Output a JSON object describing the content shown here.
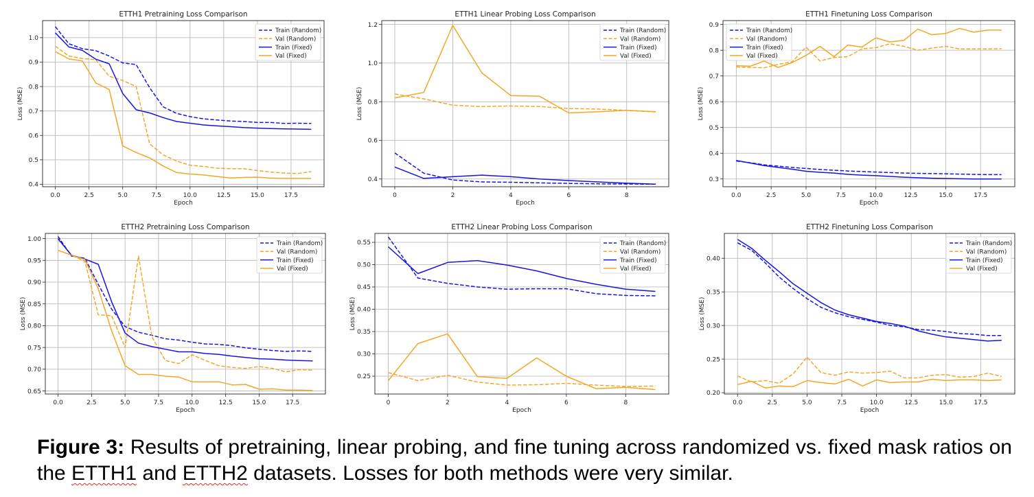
{
  "legend_labels": [
    "Train (Random)",
    "Val (Random)",
    "Train (Fixed)",
    "Val (Fixed)"
  ],
  "series_styles": [
    {
      "color": "#1414e6",
      "dash": true
    },
    {
      "color": "#f5a623",
      "dash": true
    },
    {
      "color": "#1414e6",
      "dash": false
    },
    {
      "color": "#f5a623",
      "dash": false
    }
  ],
  "caption": {
    "label": "Figure 3:",
    "part1": " Results of pretraining, linear probing, and fine tuning across randomized vs. fixed mask ratios on the ",
    "word1": "ETTH1",
    "part2": " and ",
    "word2": "ETTH2",
    "part3": " datasets. Losses for both methods were very similar."
  },
  "chart_data": [
    {
      "type": "line",
      "title": "ETTH1 Pretraining Loss Comparison",
      "xlabel": "Epoch",
      "ylabel": "Loss (MSE)",
      "xlim": [
        -0.95,
        19.95
      ],
      "ylim": [
        0.39,
        1.07
      ],
      "xticks": [
        0,
        2.5,
        5,
        7.5,
        10,
        12.5,
        15,
        17.5
      ],
      "xtick_labels": [
        "0.0",
        "2.5",
        "5.0",
        "7.5",
        "10.0",
        "12.5",
        "15.0",
        "17.5"
      ],
      "yticks": [
        0.4,
        0.5,
        0.6,
        0.7,
        0.8,
        0.9,
        1.0
      ],
      "ytick_labels": [
        "0.4",
        "0.5",
        "0.6",
        "0.7",
        "0.8",
        "0.9",
        "1.0"
      ],
      "grid": true,
      "legend": "top-right",
      "x": [
        0,
        1,
        2,
        3,
        4,
        5,
        6,
        7,
        8,
        9,
        10,
        11,
        12,
        13,
        14,
        15,
        16,
        17,
        18,
        19
      ],
      "series": [
        {
          "name": "Train (Random)",
          "values": [
            1.045,
            0.975,
            0.955,
            0.947,
            0.925,
            0.897,
            0.89,
            0.795,
            0.717,
            0.69,
            0.677,
            0.668,
            0.663,
            0.659,
            0.657,
            0.653,
            0.653,
            0.649,
            0.65,
            0.649
          ]
        },
        {
          "name": "Val (Random)",
          "values": [
            0.965,
            0.925,
            0.915,
            0.91,
            0.842,
            0.825,
            0.8,
            0.565,
            0.52,
            0.495,
            0.478,
            0.473,
            0.466,
            0.464,
            0.464,
            0.456,
            0.45,
            0.446,
            0.444,
            0.452
          ]
        },
        {
          "name": "Train (Fixed)",
          "values": [
            1.02,
            0.962,
            0.948,
            0.912,
            0.893,
            0.772,
            0.705,
            0.692,
            0.673,
            0.657,
            0.65,
            0.643,
            0.639,
            0.636,
            0.632,
            0.63,
            0.628,
            0.627,
            0.626,
            0.625
          ]
        },
        {
          "name": "Val (Fixed)",
          "values": [
            0.943,
            0.913,
            0.905,
            0.815,
            0.788,
            0.557,
            0.53,
            0.508,
            0.475,
            0.448,
            0.442,
            0.438,
            0.432,
            0.426,
            0.428,
            0.429,
            0.425,
            0.424,
            0.424,
            0.424
          ]
        }
      ]
    },
    {
      "type": "line",
      "title": "ETTH1 Linear Probing Loss Comparison",
      "xlabel": "Epoch",
      "ylabel": "Loss (MSE)",
      "xlim": [
        -0.45,
        9.45
      ],
      "ylim": [
        0.36,
        1.22
      ],
      "xticks": [
        0,
        2,
        4,
        6,
        8
      ],
      "xtick_labels": [
        "0",
        "2",
        "4",
        "6",
        "8"
      ],
      "yticks": [
        0.4,
        0.6,
        0.8,
        1.0,
        1.2
      ],
      "ytick_labels": [
        "0.4",
        "0.6",
        "0.8",
        "1.0",
        "1.2"
      ],
      "grid": true,
      "legend": "top-right",
      "x": [
        0,
        1,
        2,
        3,
        4,
        5,
        6,
        7,
        8,
        9
      ],
      "series": [
        {
          "name": "Train (Random)",
          "values": [
            0.535,
            0.43,
            0.395,
            0.385,
            0.383,
            0.38,
            0.377,
            0.375,
            0.374,
            0.373
          ]
        },
        {
          "name": "Val (Random)",
          "values": [
            0.84,
            0.815,
            0.782,
            0.775,
            0.778,
            0.775,
            0.765,
            0.762,
            0.755,
            0.747
          ]
        },
        {
          "name": "Train (Fixed)",
          "values": [
            0.462,
            0.403,
            0.412,
            0.42,
            0.412,
            0.4,
            0.392,
            0.385,
            0.378,
            0.373
          ]
        },
        {
          "name": "Val (Fixed)",
          "values": [
            0.82,
            0.848,
            1.195,
            0.95,
            0.832,
            0.828,
            0.742,
            0.748,
            0.755,
            0.748
          ]
        }
      ]
    },
    {
      "type": "line",
      "title": "ETTH1 Finetuning Loss Comparison",
      "xlabel": "Epoch",
      "ylabel": "Loss (MSE)",
      "xlim": [
        -0.95,
        19.95
      ],
      "ylim": [
        0.27,
        0.915
      ],
      "xticks": [
        0,
        2.5,
        5,
        7.5,
        10,
        12.5,
        15,
        17.5
      ],
      "xtick_labels": [
        "0.0",
        "2.5",
        "5.0",
        "7.5",
        "10.0",
        "12.5",
        "15.0",
        "17.5"
      ],
      "yticks": [
        0.3,
        0.4,
        0.5,
        0.6,
        0.7,
        0.8,
        0.9
      ],
      "ytick_labels": [
        "0.3",
        "0.4",
        "0.5",
        "0.6",
        "0.7",
        "0.8",
        "0.9"
      ],
      "grid": true,
      "legend": "top-left",
      "x": [
        0,
        1,
        2,
        3,
        4,
        5,
        6,
        7,
        8,
        9,
        10,
        11,
        12,
        13,
        14,
        15,
        16,
        17,
        18,
        19
      ],
      "series": [
        {
          "name": "Train (Random)",
          "values": [
            0.37,
            0.363,
            0.355,
            0.35,
            0.345,
            0.341,
            0.337,
            0.334,
            0.331,
            0.329,
            0.327,
            0.325,
            0.323,
            0.322,
            0.321,
            0.32,
            0.319,
            0.318,
            0.317,
            0.317
          ]
        },
        {
          "name": "Val (Random)",
          "values": [
            0.735,
            0.733,
            0.732,
            0.745,
            0.755,
            0.812,
            0.758,
            0.772,
            0.775,
            0.805,
            0.81,
            0.825,
            0.815,
            0.8,
            0.808,
            0.815,
            0.805,
            0.805,
            0.805,
            0.806
          ]
        },
        {
          "name": "Train (Fixed)",
          "values": [
            0.372,
            0.362,
            0.352,
            0.345,
            0.338,
            0.33,
            0.326,
            0.323,
            0.318,
            0.315,
            0.313,
            0.31,
            0.307,
            0.305,
            0.303,
            0.302,
            0.301,
            0.3,
            0.3,
            0.3
          ]
        },
        {
          "name": "Val (Fixed)",
          "values": [
            0.74,
            0.738,
            0.758,
            0.733,
            0.752,
            0.78,
            0.815,
            0.775,
            0.82,
            0.812,
            0.848,
            0.832,
            0.838,
            0.882,
            0.86,
            0.865,
            0.885,
            0.87,
            0.878,
            0.878
          ]
        }
      ]
    },
    {
      "type": "line",
      "title": "ETTH2 Pretraining Loss Comparison",
      "xlabel": "Epoch",
      "ylabel": "Loss (MSE)",
      "xlim": [
        -0.95,
        19.95
      ],
      "ylim": [
        0.643,
        1.012
      ],
      "xticks": [
        0,
        2.5,
        5,
        7.5,
        10,
        12.5,
        15,
        17.5
      ],
      "xtick_labels": [
        "0.0",
        "2.5",
        "5.0",
        "7.5",
        "10.0",
        "12.5",
        "15.0",
        "17.5"
      ],
      "yticks": [
        0.65,
        0.7,
        0.75,
        0.8,
        0.85,
        0.9,
        0.95,
        1.0
      ],
      "ytick_labels": [
        "0.65",
        "0.70",
        "0.75",
        "0.80",
        "0.85",
        "0.90",
        "0.95",
        "1.00"
      ],
      "grid": true,
      "legend": "top-right",
      "x": [
        0,
        1,
        2,
        3,
        4,
        5,
        6,
        7,
        8,
        9,
        10,
        11,
        12,
        13,
        14,
        15,
        16,
        17,
        18,
        19
      ],
      "series": [
        {
          "name": "Train (Random)",
          "values": [
            1.005,
            0.96,
            0.955,
            0.895,
            0.838,
            0.798,
            0.785,
            0.778,
            0.77,
            0.767,
            0.762,
            0.758,
            0.757,
            0.754,
            0.749,
            0.746,
            0.743,
            0.741,
            0.742,
            0.741
          ]
        },
        {
          "name": "Val (Random)",
          "values": [
            0.998,
            0.962,
            0.948,
            0.825,
            0.823,
            0.75,
            0.96,
            0.775,
            0.72,
            0.713,
            0.733,
            0.72,
            0.708,
            0.704,
            0.702,
            0.706,
            0.702,
            0.694,
            0.699,
            0.698
          ]
        },
        {
          "name": "Train (Fixed)",
          "values": [
            1.0,
            0.962,
            0.953,
            0.941,
            0.855,
            0.783,
            0.76,
            0.752,
            0.746,
            0.74,
            0.74,
            0.736,
            0.734,
            0.73,
            0.727,
            0.724,
            0.723,
            0.721,
            0.72,
            0.719
          ]
        },
        {
          "name": "Val (Fixed)",
          "values": [
            0.973,
            0.962,
            0.952,
            0.885,
            0.788,
            0.708,
            0.688,
            0.688,
            0.684,
            0.682,
            0.671,
            0.671,
            0.671,
            0.664,
            0.665,
            0.654,
            0.655,
            0.652,
            0.652,
            0.651
          ]
        }
      ]
    },
    {
      "type": "line",
      "title": "ETTH2 Linear Probing Loss Comparison",
      "xlabel": "Epoch",
      "ylabel": "Loss (MSE)",
      "xlim": [
        -0.45,
        9.45
      ],
      "ylim": [
        0.21,
        0.57
      ],
      "xticks": [
        0,
        2,
        4,
        6,
        8
      ],
      "xtick_labels": [
        "0",
        "2",
        "4",
        "6",
        "8"
      ],
      "yticks": [
        0.25,
        0.3,
        0.35,
        0.4,
        0.45,
        0.5,
        0.55
      ],
      "ytick_labels": [
        "0.25",
        "0.30",
        "0.35",
        "0.40",
        "0.45",
        "0.50",
        "0.55"
      ],
      "grid": true,
      "legend": "top-right",
      "x": [
        0,
        1,
        2,
        3,
        4,
        5,
        6,
        7,
        8,
        9
      ],
      "series": [
        {
          "name": "Train (Random)",
          "values": [
            0.562,
            0.47,
            0.458,
            0.45,
            0.445,
            0.446,
            0.446,
            0.435,
            0.431,
            0.43
          ]
        },
        {
          "name": "Val (Random)",
          "values": [
            0.258,
            0.24,
            0.252,
            0.237,
            0.23,
            0.231,
            0.234,
            0.23,
            0.227,
            0.228
          ]
        },
        {
          "name": "Train (Fixed)",
          "values": [
            0.54,
            0.48,
            0.505,
            0.509,
            0.499,
            0.486,
            0.469,
            0.456,
            0.445,
            0.44
          ]
        },
        {
          "name": "Val (Fixed)",
          "values": [
            0.24,
            0.323,
            0.345,
            0.249,
            0.245,
            0.291,
            0.25,
            0.222,
            0.225,
            0.22
          ]
        }
      ]
    },
    {
      "type": "line",
      "title": "ETTH2 Finetuning Loss Comparison",
      "xlabel": "Epoch",
      "ylabel": "Loss (MSE)",
      "xlim": [
        -0.95,
        19.95
      ],
      "ylim": [
        0.198,
        0.437
      ],
      "xticks": [
        0,
        2.5,
        5,
        7.5,
        10,
        12.5,
        15,
        17.5
      ],
      "xtick_labels": [
        "0.0",
        "2.5",
        "5.0",
        "7.5",
        "10.0",
        "12.5",
        "15.0",
        "17.5"
      ],
      "yticks": [
        0.2,
        0.25,
        0.3,
        0.35,
        0.4
      ],
      "ytick_labels": [
        "0.20",
        "0.25",
        "0.30",
        "0.35",
        "0.40"
      ],
      "grid": true,
      "legend": "top-right",
      "x": [
        0,
        1,
        2,
        3,
        4,
        5,
        6,
        7,
        8,
        9,
        10,
        11,
        12,
        13,
        14,
        15,
        16,
        17,
        18,
        19
      ],
      "series": [
        {
          "name": "Train (Random)",
          "values": [
            0.423,
            0.412,
            0.393,
            0.372,
            0.355,
            0.34,
            0.327,
            0.319,
            0.313,
            0.309,
            0.305,
            0.3,
            0.298,
            0.294,
            0.293,
            0.291,
            0.288,
            0.287,
            0.285,
            0.285
          ]
        },
        {
          "name": "Val (Random)",
          "values": [
            0.225,
            0.216,
            0.218,
            0.214,
            0.228,
            0.253,
            0.23,
            0.226,
            0.231,
            0.229,
            0.23,
            0.232,
            0.222,
            0.222,
            0.226,
            0.227,
            0.223,
            0.224,
            0.229,
            0.224
          ]
        },
        {
          "name": "Train (Fixed)",
          "values": [
            0.428,
            0.415,
            0.397,
            0.38,
            0.362,
            0.348,
            0.334,
            0.323,
            0.316,
            0.311,
            0.306,
            0.303,
            0.299,
            0.292,
            0.287,
            0.283,
            0.281,
            0.279,
            0.277,
            0.278
          ]
        },
        {
          "name": "Val (Fixed)",
          "values": [
            0.212,
            0.217,
            0.207,
            0.21,
            0.209,
            0.218,
            0.215,
            0.213,
            0.22,
            0.21,
            0.219,
            0.215,
            0.216,
            0.216,
            0.22,
            0.218,
            0.219,
            0.219,
            0.218,
            0.219
          ]
        }
      ]
    }
  ]
}
